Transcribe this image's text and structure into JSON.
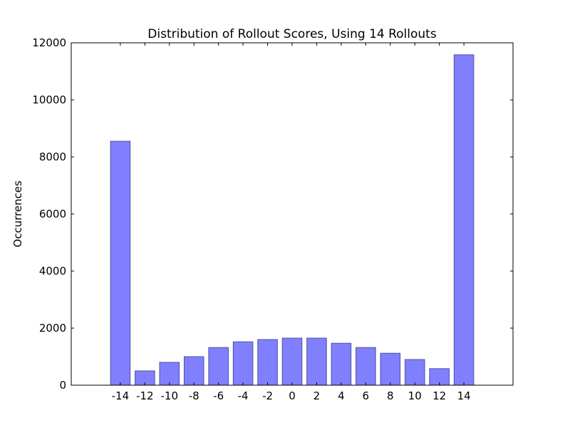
{
  "chart_data": {
    "type": "bar",
    "title": "Distribution of Rollout Scores, Using 14 Rollouts",
    "xlabel": "",
    "ylabel": "Occurrences",
    "categories": [
      "-14",
      "-12",
      "-10",
      "-8",
      "-6",
      "-4",
      "-2",
      "0",
      "2",
      "4",
      "6",
      "8",
      "10",
      "12",
      "14"
    ],
    "x": [
      -14,
      -12,
      -10,
      -8,
      -6,
      -4,
      -2,
      0,
      2,
      4,
      6,
      8,
      10,
      12,
      14
    ],
    "values": [
      8550,
      500,
      800,
      1000,
      1320,
      1520,
      1600,
      1650,
      1650,
      1470,
      1320,
      1120,
      900,
      580,
      11580
    ],
    "xlim": [
      -18,
      18
    ],
    "ylim": [
      0,
      12000
    ],
    "yticks": [
      0,
      2000,
      4000,
      6000,
      8000,
      10000,
      12000
    ],
    "ytick_labels": [
      "0",
      "2000",
      "4000",
      "6000",
      "8000",
      "10000",
      "12000"
    ],
    "bar_color": "#8080ff",
    "bar_edge_color": "#4f4f9f",
    "grid": false,
    "legend": "none"
  }
}
